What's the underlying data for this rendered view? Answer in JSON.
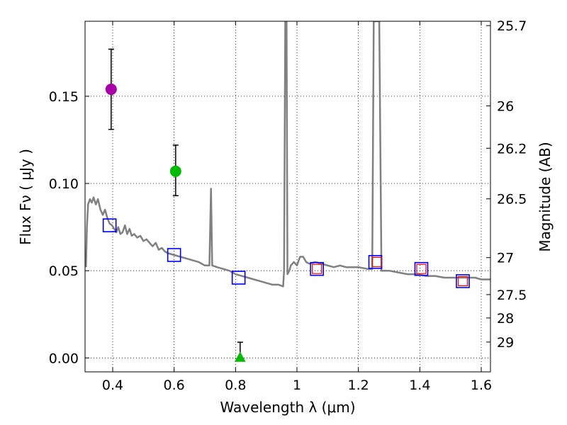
{
  "chart_data": {
    "type": "scatter",
    "xlabel": "Wavelength  λ (μm)",
    "ylabel_left": "Flux  Fν  ( μJy )",
    "ylabel_right": "Magnitude (AB)",
    "xlim": [
      0.31,
      1.63
    ],
    "ylim": [
      -0.008,
      0.193
    ],
    "x_ticks": [
      {
        "value": 0.4,
        "label": "0.4"
      },
      {
        "value": 0.6,
        "label": "0.6"
      },
      {
        "value": 0.8,
        "label": "0.8"
      },
      {
        "value": 1.0,
        "label": "1"
      },
      {
        "value": 1.2,
        "label": "1.2"
      },
      {
        "value": 1.4,
        "label": "1.4"
      },
      {
        "value": 1.6,
        "label": "1.6"
      }
    ],
    "y_ticks": [
      {
        "value": 0.0,
        "label": "0.00"
      },
      {
        "value": 0.05,
        "label": "0.05"
      },
      {
        "value": 0.1,
        "label": "0.10"
      },
      {
        "value": 0.15,
        "label": "0.15"
      }
    ],
    "mag_ticks": [
      {
        "value": 0.1905,
        "label": "25.7"
      },
      {
        "value": 0.1445,
        "label": "26"
      },
      {
        "value": 0.1202,
        "label": "26.2"
      },
      {
        "value": 0.0912,
        "label": "26.5"
      },
      {
        "value": 0.0575,
        "label": "27"
      },
      {
        "value": 0.0363,
        "label": "27.5"
      },
      {
        "value": 0.0229,
        "label": "28"
      },
      {
        "value": 0.0091,
        "label": "29"
      }
    ],
    "grid": true,
    "gridlines_y": [
      0.0,
      0.05,
      0.1,
      0.15
    ],
    "model_spectrum": {
      "color": "#808080",
      "points": [
        [
          0.313,
          0.052
        ],
        [
          0.316,
          0.075
        ],
        [
          0.32,
          0.088
        ],
        [
          0.326,
          0.091
        ],
        [
          0.332,
          0.089
        ],
        [
          0.338,
          0.092
        ],
        [
          0.345,
          0.088
        ],
        [
          0.352,
          0.091
        ],
        [
          0.36,
          0.085
        ],
        [
          0.368,
          0.082
        ],
        [
          0.375,
          0.085
        ],
        [
          0.383,
          0.08
        ],
        [
          0.39,
          0.077
        ],
        [
          0.398,
          0.076
        ],
        [
          0.405,
          0.074
        ],
        [
          0.412,
          0.072
        ],
        [
          0.418,
          0.075
        ],
        [
          0.425,
          0.071
        ],
        [
          0.432,
          0.072
        ],
        [
          0.44,
          0.076
        ],
        [
          0.447,
          0.071
        ],
        [
          0.455,
          0.074
        ],
        [
          0.462,
          0.07
        ],
        [
          0.47,
          0.071
        ],
        [
          0.48,
          0.069
        ],
        [
          0.49,
          0.07
        ],
        [
          0.5,
          0.067
        ],
        [
          0.51,
          0.068
        ],
        [
          0.52,
          0.066
        ],
        [
          0.53,
          0.064
        ],
        [
          0.54,
          0.066
        ],
        [
          0.55,
          0.062
        ],
        [
          0.56,
          0.063
        ],
        [
          0.57,
          0.061
        ],
        [
          0.58,
          0.06
        ],
        [
          0.6,
          0.059
        ],
        [
          0.62,
          0.058
        ],
        [
          0.64,
          0.057
        ],
        [
          0.66,
          0.056
        ],
        [
          0.68,
          0.055
        ],
        [
          0.7,
          0.053
        ],
        [
          0.715,
          0.053
        ],
        [
          0.72,
          0.097
        ],
        [
          0.724,
          0.053
        ],
        [
          0.74,
          0.052
        ],
        [
          0.76,
          0.051
        ],
        [
          0.78,
          0.05
        ],
        [
          0.8,
          0.048
        ],
        [
          0.82,
          0.047
        ],
        [
          0.84,
          0.046
        ],
        [
          0.86,
          0.045
        ],
        [
          0.88,
          0.044
        ],
        [
          0.9,
          0.043
        ],
        [
          0.92,
          0.042
        ],
        [
          0.94,
          0.042
        ],
        [
          0.955,
          0.041
        ],
        [
          0.958,
          0.05
        ],
        [
          0.962,
          0.193
        ],
        [
          0.966,
          0.193
        ],
        [
          0.969,
          0.048
        ],
        [
          0.975,
          0.05
        ],
        [
          0.98,
          0.053
        ],
        [
          0.99,
          0.055
        ],
        [
          1.0,
          0.053
        ],
        [
          1.01,
          0.058
        ],
        [
          1.02,
          0.058
        ],
        [
          1.03,
          0.055
        ],
        [
          1.04,
          0.054
        ],
        [
          1.06,
          0.055
        ],
        [
          1.08,
          0.054
        ],
        [
          1.1,
          0.053
        ],
        [
          1.12,
          0.052
        ],
        [
          1.14,
          0.053
        ],
        [
          1.16,
          0.052
        ],
        [
          1.18,
          0.052
        ],
        [
          1.2,
          0.052
        ],
        [
          1.23,
          0.051
        ],
        [
          1.245,
          0.051
        ],
        [
          1.25,
          0.193
        ],
        [
          1.268,
          0.193
        ],
        [
          1.275,
          0.05
        ],
        [
          1.3,
          0.05
        ],
        [
          1.33,
          0.049
        ],
        [
          1.36,
          0.048
        ],
        [
          1.39,
          0.048
        ],
        [
          1.42,
          0.047
        ],
        [
          1.45,
          0.047
        ],
        [
          1.48,
          0.046
        ],
        [
          1.51,
          0.046
        ],
        [
          1.55,
          0.046
        ],
        [
          1.58,
          0.046
        ],
        [
          1.6,
          0.045
        ],
        [
          1.62,
          0.045
        ],
        [
          1.63,
          0.045
        ]
      ]
    },
    "model_photometry": {
      "edgecolor": "#0000ff",
      "points": [
        {
          "x": 0.39,
          "y": 0.076
        },
        {
          "x": 0.6,
          "y": 0.059
        },
        {
          "x": 0.81,
          "y": 0.046
        },
        {
          "x": 1.065,
          "y": 0.051
        },
        {
          "x": 1.255,
          "y": 0.055
        },
        {
          "x": 1.405,
          "y": 0.051
        },
        {
          "x": 1.54,
          "y": 0.044
        }
      ]
    },
    "observed_red_squares": {
      "edgecolor": "#ff0000",
      "points": [
        {
          "x": 1.065,
          "y": 0.051
        },
        {
          "x": 1.26,
          "y": 0.055
        },
        {
          "x": 1.405,
          "y": 0.051
        },
        {
          "x": 1.54,
          "y": 0.044
        }
      ]
    },
    "observed_points": [
      {
        "x": 0.395,
        "y": 0.154,
        "yerr_low": 0.131,
        "yerr_high": 0.177,
        "marker": "circle",
        "color": "#aa00aa"
      },
      {
        "x": 0.605,
        "y": 0.107,
        "yerr_low": 0.093,
        "yerr_high": 0.122,
        "marker": "circle",
        "color": "#00bb00"
      },
      {
        "x": 0.815,
        "y": 0.0,
        "yerr_low": 0.0,
        "yerr_high": 0.009,
        "marker": "triangle",
        "color": "#00bb00"
      }
    ]
  }
}
